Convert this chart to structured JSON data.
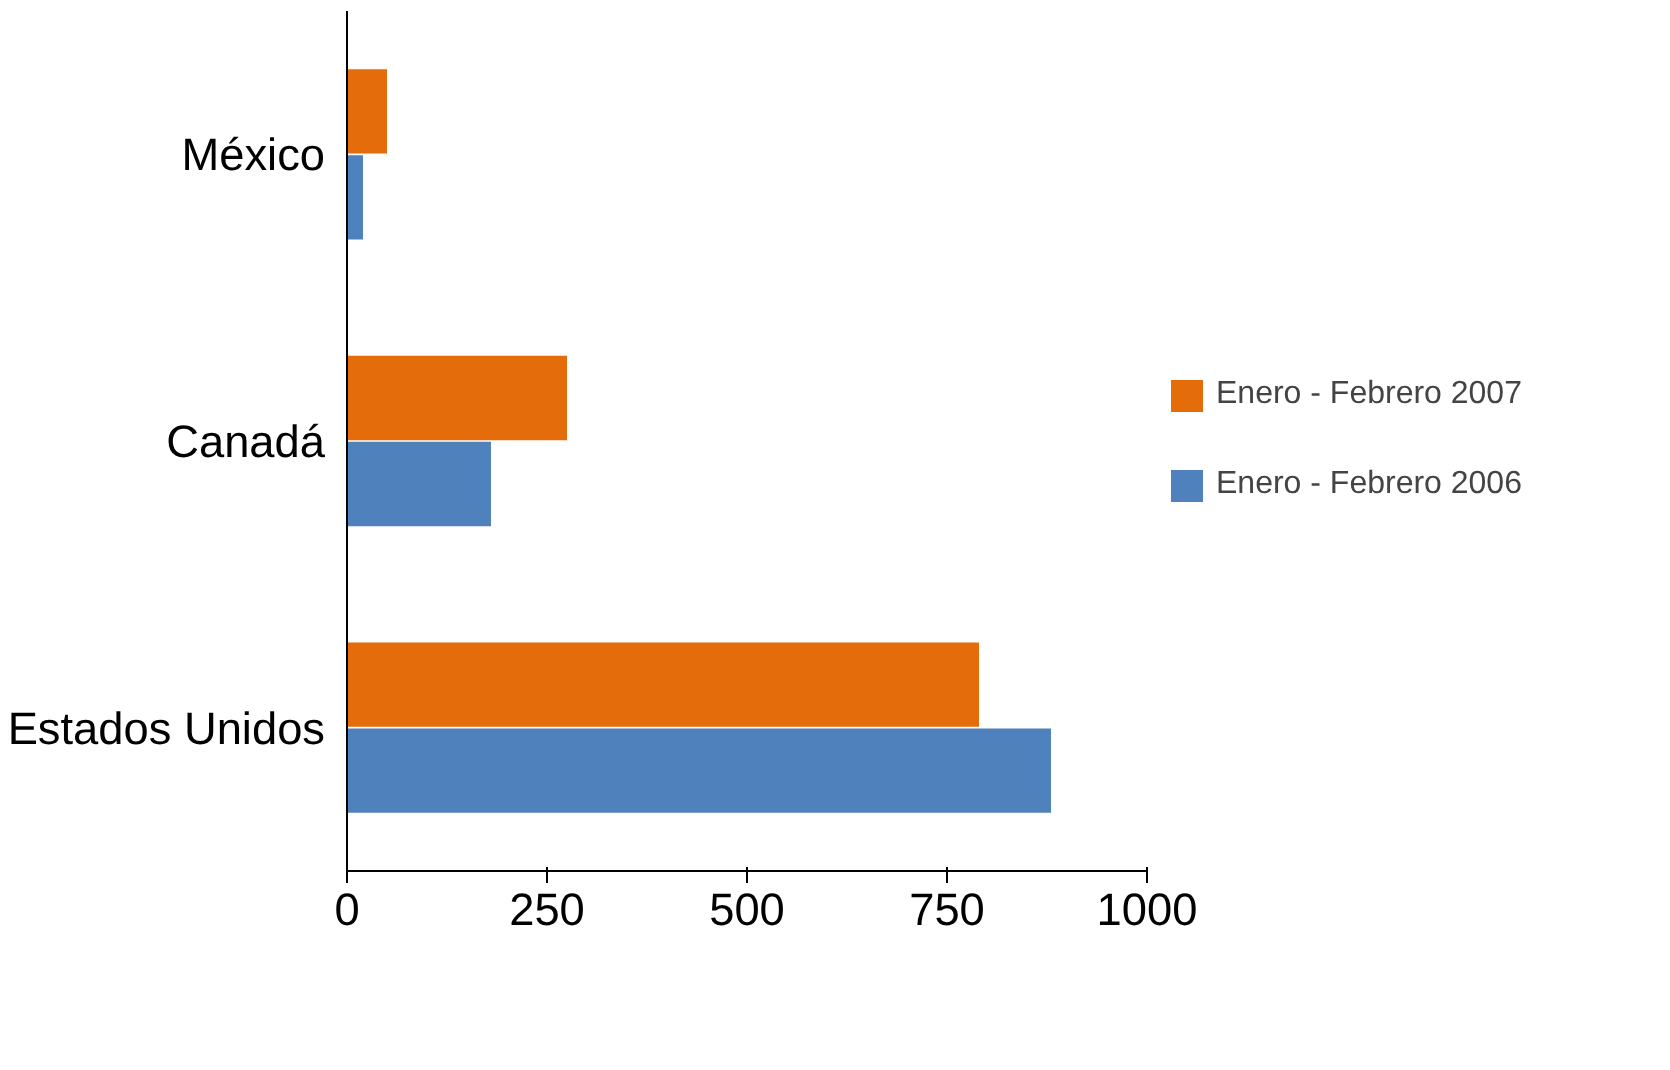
{
  "chart_data": {
    "type": "bar",
    "orientation": "horizontal",
    "categories": [
      "México",
      "Canadá",
      "Estados Unidos"
    ],
    "series": [
      {
        "name": "Enero - Febrero 2006",
        "color": "#4f81bd",
        "values": [
          20,
          180,
          880
        ]
      },
      {
        "name": "Enero - Febrero 2007",
        "color": "#e46c0a",
        "values": [
          50,
          275,
          790
        ]
      }
    ],
    "xlim": [
      0,
      1000
    ],
    "xticks": [
      0,
      250,
      500,
      750,
      1000
    ],
    "grid": false,
    "legend": "right"
  }
}
